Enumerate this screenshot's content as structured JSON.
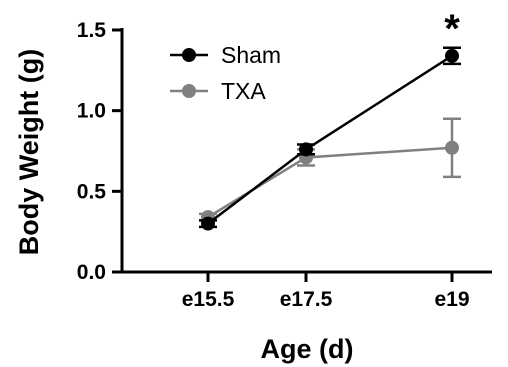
{
  "chart_data": {
    "type": "line",
    "title": "",
    "xlabel": "Age (d)",
    "ylabel": "Body Weight (g)",
    "categories": [
      "e15.5",
      "e17.5",
      "e19"
    ],
    "ylim": [
      0.0,
      1.5
    ],
    "yticks": [
      "0.0",
      "0.5",
      "1.0",
      "1.5"
    ],
    "grid": false,
    "legend_position": "top-left",
    "series": [
      {
        "name": "Sham",
        "color": "#000000",
        "values": [
          0.3,
          0.76,
          1.34
        ],
        "error": [
          0.02,
          0.03,
          0.05
        ]
      },
      {
        "name": "TXA",
        "color": "#808080",
        "values": [
          0.34,
          0.71,
          0.77
        ],
        "error": [
          0.02,
          0.05,
          0.18
        ]
      }
    ],
    "annotations": [
      {
        "text": "*",
        "category": "e19"
      }
    ]
  }
}
